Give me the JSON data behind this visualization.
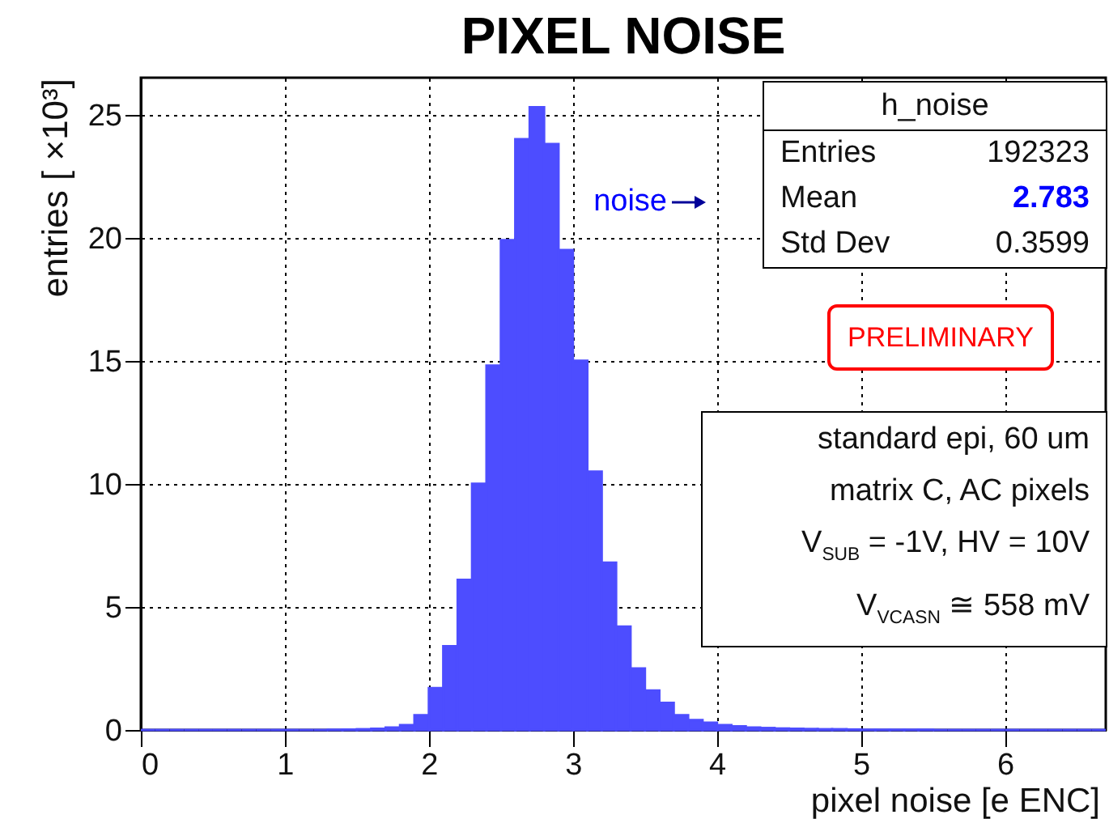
{
  "chart_data": {
    "type": "histogram",
    "title": "PIXEL NOISE",
    "xlabel": "pixel noise [e ENC]",
    "ylabel": "entries  [ ×10³]",
    "bins": [
      0,
      0.1,
      0.2,
      0.3,
      0.4,
      0.5,
      0.6,
      0.7,
      0.8,
      0.9,
      1,
      1.1,
      1.2,
      1.3,
      1.4,
      1.5,
      1.6,
      1.7,
      1.8,
      1.9,
      2,
      2.1,
      2.2,
      2.3,
      2.4,
      2.5,
      2.6,
      2.7,
      2.8,
      2.9,
      3,
      3.1,
      3.2,
      3.3,
      3.4,
      3.5,
      3.6,
      3.7,
      3.8,
      3.9,
      4,
      4.1,
      4.2,
      4.3,
      4.4,
      4.5,
      4.6,
      4.7,
      4.8,
      4.9,
      5,
      5.1,
      5.2,
      5.3,
      5.4,
      5.5,
      5.6,
      5.7,
      5.8,
      5.9,
      6,
      6.1,
      6.2,
      6.3,
      6.4,
      6.5,
      6.6,
      6.7
    ],
    "values": [
      0,
      0,
      0,
      0,
      0,
      0,
      0,
      0,
      0,
      0,
      0,
      0,
      0,
      0.01,
      0.02,
      0.03,
      0.05,
      0.1,
      0.2,
      0.6,
      1.7,
      3.4,
      6.1,
      10.0,
      14.8,
      19.9,
      24.0,
      25.3,
      23.8,
      19.5,
      15.0,
      10.5,
      6.8,
      4.2,
      2.5,
      1.6,
      1.1,
      0.6,
      0.4,
      0.3,
      0.2,
      0.15,
      0.1,
      0.08,
      0.06,
      0.05,
      0.04,
      0.03,
      0.03,
      0.02,
      0.01,
      0.01,
      0.01,
      0.01,
      0.01,
      0,
      0,
      0,
      0,
      0,
      0,
      0,
      0,
      0,
      0,
      0,
      0
    ],
    "color": "#4d4dff",
    "xlim": [
      0,
      6.7
    ],
    "ylim": [
      0,
      26.5
    ],
    "xticks": [
      0,
      1,
      2,
      3,
      4,
      5,
      6
    ],
    "yticks": [
      0,
      5,
      10,
      15,
      20,
      25
    ],
    "grid": true,
    "annotations": [
      "h_noise",
      "Entries",
      "192323",
      "Mean",
      "2.783",
      "Std Dev",
      "0.3599",
      "noise",
      "PRELIMINARY",
      "standard epi, 60 um",
      "matrix C, AC pixels",
      "V$_{SUB}$ = -1V, HV = 10V",
      "V$_{VCASN}$ ≅ 558 mV"
    ]
  }
}
